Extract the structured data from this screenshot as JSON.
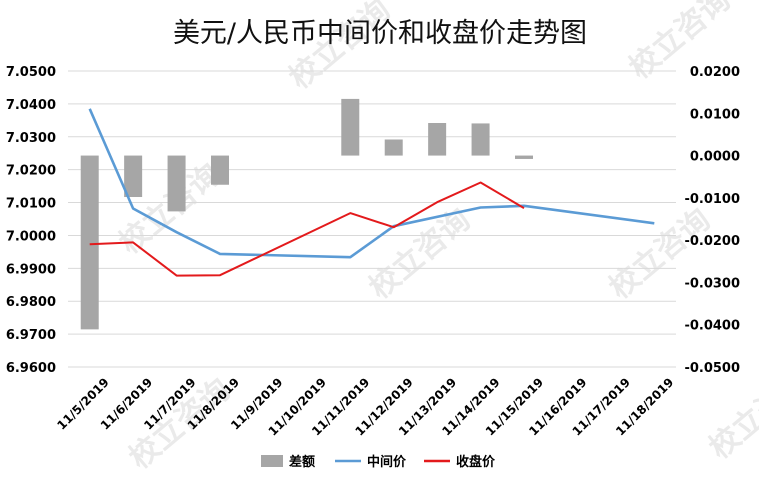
{
  "chart_data": {
    "type": "bar+line",
    "title": "美元/人民币中间价和收盘价走势图",
    "categories": [
      "11/5/2019",
      "11/6/2019",
      "11/7/2019",
      "11/8/2019",
      "11/9/2019",
      "11/10/2019",
      "11/11/2019",
      "11/12/2019",
      "11/13/2019",
      "11/14/2019",
      "11/15/2019",
      "11/16/2019",
      "11/17/2019",
      "11/18/2019"
    ],
    "left_axis": {
      "ylim": [
        6.96,
        7.05
      ],
      "ticks": [
        "7.0500",
        "7.0400",
        "7.0300",
        "7.0200",
        "7.0100",
        "7.0000",
        "6.9900",
        "6.9800",
        "6.9700",
        "6.9600"
      ]
    },
    "right_axis": {
      "ylim": [
        -0.05,
        0.02
      ],
      "ticks": [
        "0.0200",
        "0.0100",
        "0.0000",
        "-0.0100",
        "-0.0200",
        "-0.0300",
        "-0.0400",
        "-0.0500"
      ]
    },
    "grid": true,
    "legend_position": "bottom",
    "series": [
      {
        "name": "差额",
        "kind": "bar",
        "axis": "right",
        "color": "#a6a6a6",
        "values": [
          -0.0411,
          -0.0098,
          -0.0132,
          -0.0069,
          null,
          null,
          0.0134,
          0.0038,
          0.0077,
          0.0076,
          -0.0008,
          null,
          null,
          null
        ]
      },
      {
        "name": "中间价",
        "kind": "line",
        "axis": "left",
        "color": "#5b9bd5",
        "values": [
          7.0385,
          7.0082,
          7.001,
          6.9944,
          null,
          null,
          6.9934,
          7.0028,
          null,
          7.0085,
          7.009,
          null,
          null,
          7.0037
        ]
      },
      {
        "name": "收盘价",
        "kind": "line",
        "axis": "left",
        "color": "#e31a1c",
        "values": [
          6.9973,
          6.9979,
          6.9878,
          6.9879,
          null,
          null,
          7.0068,
          7.0025,
          7.0101,
          7.0161,
          7.0083,
          null,
          null,
          null
        ]
      }
    ]
  },
  "watermark": "校立咨询"
}
